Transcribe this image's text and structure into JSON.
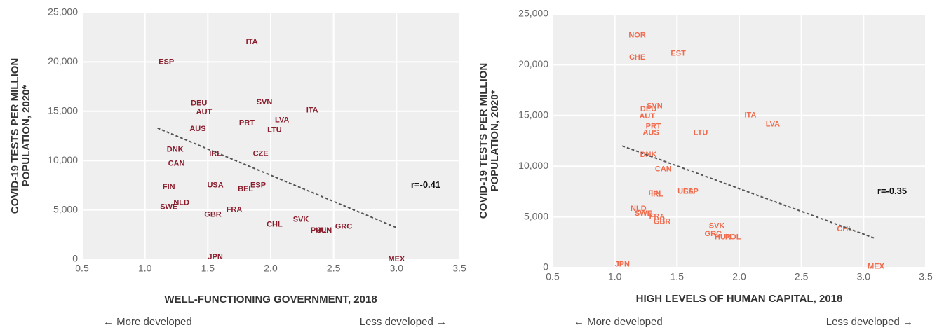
{
  "chart_data": [
    {
      "type": "scatter",
      "color": "#8a1c2c",
      "y_label": [
        "COVID-19 TESTS PER MILLION",
        "POPULATION, 2020*"
      ],
      "x_label": "WELL-FUNCTIONING GOVERNMENT, 2018",
      "note_left": "← More developed",
      "note_right": "Less developed →",
      "annotation": "r=-0.41",
      "labels": [
        "ESP",
        "ITA",
        "DEU",
        "AUT",
        "SVN",
        "ITA",
        "LVA",
        "PRT",
        "LTU",
        "AUS",
        "DNK",
        "IRL",
        "CZE",
        "CAN",
        "FIN",
        "USA",
        "BEL",
        "ESP",
        "NLD",
        "SWE",
        "FRA",
        "GBR",
        "CHL",
        "SVK",
        "POL",
        "HUN",
        "GRC",
        "JPN",
        "MEX"
      ],
      "x": [
        1.17,
        1.85,
        1.43,
        1.47,
        1.95,
        2.33,
        2.09,
        1.81,
        2.03,
        1.42,
        1.24,
        1.56,
        1.92,
        1.25,
        1.19,
        1.56,
        1.8,
        1.9,
        1.29,
        1.19,
        1.71,
        1.54,
        2.03,
        2.24,
        2.38,
        2.42,
        2.58,
        1.56,
        3.0
      ],
      "y": [
        20000,
        22000,
        15800,
        14900,
        15900,
        15100,
        14100,
        13800,
        13100,
        13200,
        11100,
        10700,
        10700,
        9700,
        7300,
        7500,
        7100,
        7500,
        5700,
        5300,
        5000,
        4500,
        3500,
        4000,
        2900,
        2900,
        3300,
        200,
        0
      ],
      "trendline": {
        "x": [
          1.1,
          3.0
        ],
        "y": [
          13300,
          3200
        ]
      },
      "xlim": [
        0.5,
        3.5
      ],
      "ylim": [
        0,
        25000
      ],
      "xticks": [
        0.5,
        {
          "value": 1,
          "label": "1.0"
        },
        1.5,
        {
          "value": 2,
          "label": "2.0"
        },
        2.5,
        {
          "value": 3,
          "label": "3.0"
        },
        3.5
      ],
      "yticks": [
        0,
        {
          "value": 5000,
          "label": "5,000"
        },
        {
          "value": 10000,
          "label": "10,000"
        },
        {
          "value": 15000,
          "label": "15,000"
        },
        {
          "value": 20000,
          "label": "20,000"
        },
        {
          "value": 25000,
          "label": "25,000"
        }
      ],
      "grid": true
    },
    {
      "type": "scatter",
      "color": "#f06a4c",
      "y_label": [
        "COVID-19 TESTS PER MILLION",
        "POPULATION, 2020*"
      ],
      "x_label": "HIGH LEVELS OF HUMAN CAPITAL, 2018",
      "note_left": "← More developed",
      "note_right": "Less developed →",
      "annotation": "r=-0.35",
      "labels": [
        "NOR",
        "CHE",
        "EST",
        "SVN",
        "DEU",
        "AUT",
        "ITA",
        "LVA",
        "PRT",
        "AUS",
        "LTU",
        "DNK",
        "CAN",
        "FIN",
        "IRL",
        "USA",
        "ESP",
        "NLD",
        "SWE",
        "FRA",
        "GBR",
        "SVK",
        "GRC",
        "HUN",
        "POL",
        "CHL",
        "JPN",
        "MEX"
      ],
      "x": [
        1.18,
        1.18,
        1.51,
        1.32,
        1.27,
        1.26,
        2.09,
        2.27,
        1.31,
        1.29,
        1.69,
        1.27,
        1.39,
        1.32,
        1.34,
        1.57,
        1.61,
        1.19,
        1.23,
        1.34,
        1.38,
        1.82,
        1.79,
        1.87,
        1.95,
        2.85,
        1.06,
        3.1
      ],
      "y": [
        22900,
        20700,
        21100,
        15900,
        15600,
        14900,
        15000,
        14100,
        13900,
        13300,
        13300,
        11100,
        9700,
        7300,
        7200,
        7500,
        7500,
        5800,
        5300,
        5000,
        4500,
        4100,
        3300,
        3000,
        3000,
        3800,
        300,
        100
      ],
      "trendline": {
        "x": [
          1.06,
          3.09
        ],
        "y": [
          12000,
          2900
        ]
      },
      "xlim": [
        0.5,
        3.5
      ],
      "ylim": [
        0,
        25000
      ],
      "xticks": [
        0.5,
        {
          "value": 1,
          "label": "1.0"
        },
        1.5,
        {
          "value": 2,
          "label": "2.0"
        },
        2.5,
        {
          "value": 3,
          "label": "3.0"
        },
        3.5
      ],
      "yticks": [
        0,
        {
          "value": 5000,
          "label": "5,000"
        },
        {
          "value": 10000,
          "label": "10,000"
        },
        {
          "value": 15000,
          "label": "15,000"
        },
        {
          "value": 20000,
          "label": "20,000"
        },
        {
          "value": 25000,
          "label": "25,000"
        }
      ],
      "grid": true
    }
  ]
}
